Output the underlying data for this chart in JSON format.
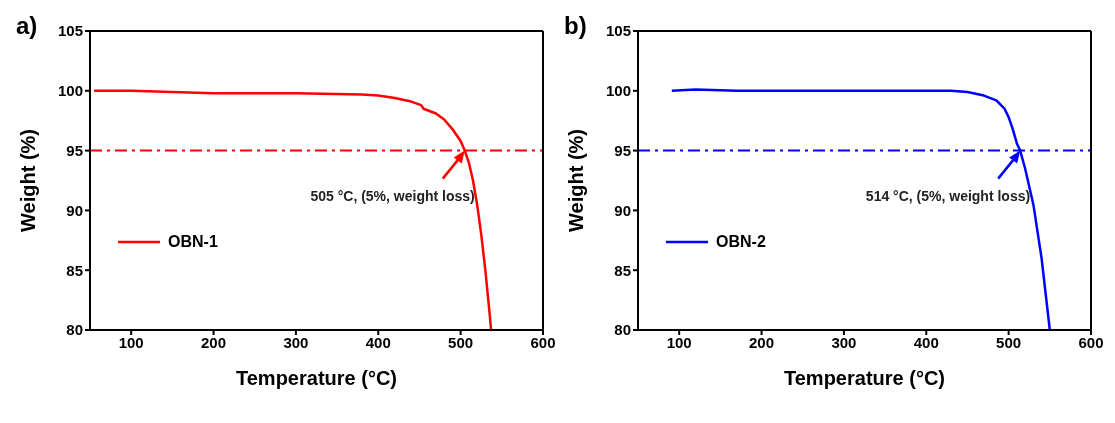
{
  "chart_data": [
    {
      "type": "line",
      "title": "a)",
      "xlabel": "Temperature (°C)",
      "ylabel": "Weight (%)",
      "xlim": [
        50,
        600
      ],
      "ylim": [
        80,
        105
      ],
      "xticks": [
        100,
        200,
        300,
        400,
        500,
        600
      ],
      "yticks": [
        80,
        85,
        90,
        95,
        100,
        105
      ],
      "legend": "left",
      "line_style": "solid",
      "marker": "none",
      "series": [
        {
          "name": "OBN-1",
          "color": "#ff0000",
          "x": [
            55,
            100,
            200,
            300,
            380,
            400,
            420,
            440,
            452,
            455,
            470,
            480,
            490,
            500,
            505,
            510,
            515,
            520,
            525,
            530,
            535,
            537
          ],
          "values": [
            100,
            100,
            99.8,
            99.8,
            99.7,
            99.6,
            99.4,
            99.1,
            98.8,
            98.5,
            98.1,
            97.6,
            96.8,
            95.8,
            95,
            94,
            92.5,
            90.5,
            88,
            85,
            81.5,
            80
          ]
        }
      ],
      "ref_lines": [
        {
          "axis": "y",
          "value": 95,
          "color": "#ff0000",
          "line_style": "dashdot"
        }
      ],
      "annotations": [
        {
          "text": "505 °C, (5%, weight loss)",
          "x": 505,
          "y": 95
        }
      ]
    },
    {
      "type": "line",
      "title": "b)",
      "xlabel": "Temperature (°C)",
      "ylabel": "Weight (%)",
      "xlim": [
        50,
        600
      ],
      "ylim": [
        80,
        105
      ],
      "xticks": [
        100,
        200,
        300,
        400,
        500,
        600
      ],
      "yticks": [
        80,
        85,
        90,
        95,
        100,
        105
      ],
      "legend": "left",
      "line_style": "solid",
      "marker": "none",
      "series": [
        {
          "name": "OBN-2",
          "color": "#0000ff",
          "x": [
            91,
            120,
            170,
            250,
            300,
            350,
            400,
            430,
            450,
            470,
            485,
            495,
            500,
            505,
            510,
            514,
            520,
            530,
            540,
            545,
            550
          ],
          "values": [
            100,
            100.1,
            100,
            100,
            100,
            100,
            100,
            100,
            99.9,
            99.6,
            99.2,
            98.5,
            97.8,
            96.8,
            95.6,
            95,
            93.5,
            90.5,
            86,
            83,
            80
          ]
        }
      ],
      "ref_lines": [
        {
          "axis": "y",
          "value": 95,
          "color": "#0000ff",
          "line_style": "dashdot"
        }
      ],
      "annotations": [
        {
          "text": "514 °C, (5%, weight loss)",
          "x": 514,
          "y": 95
        }
      ]
    }
  ]
}
